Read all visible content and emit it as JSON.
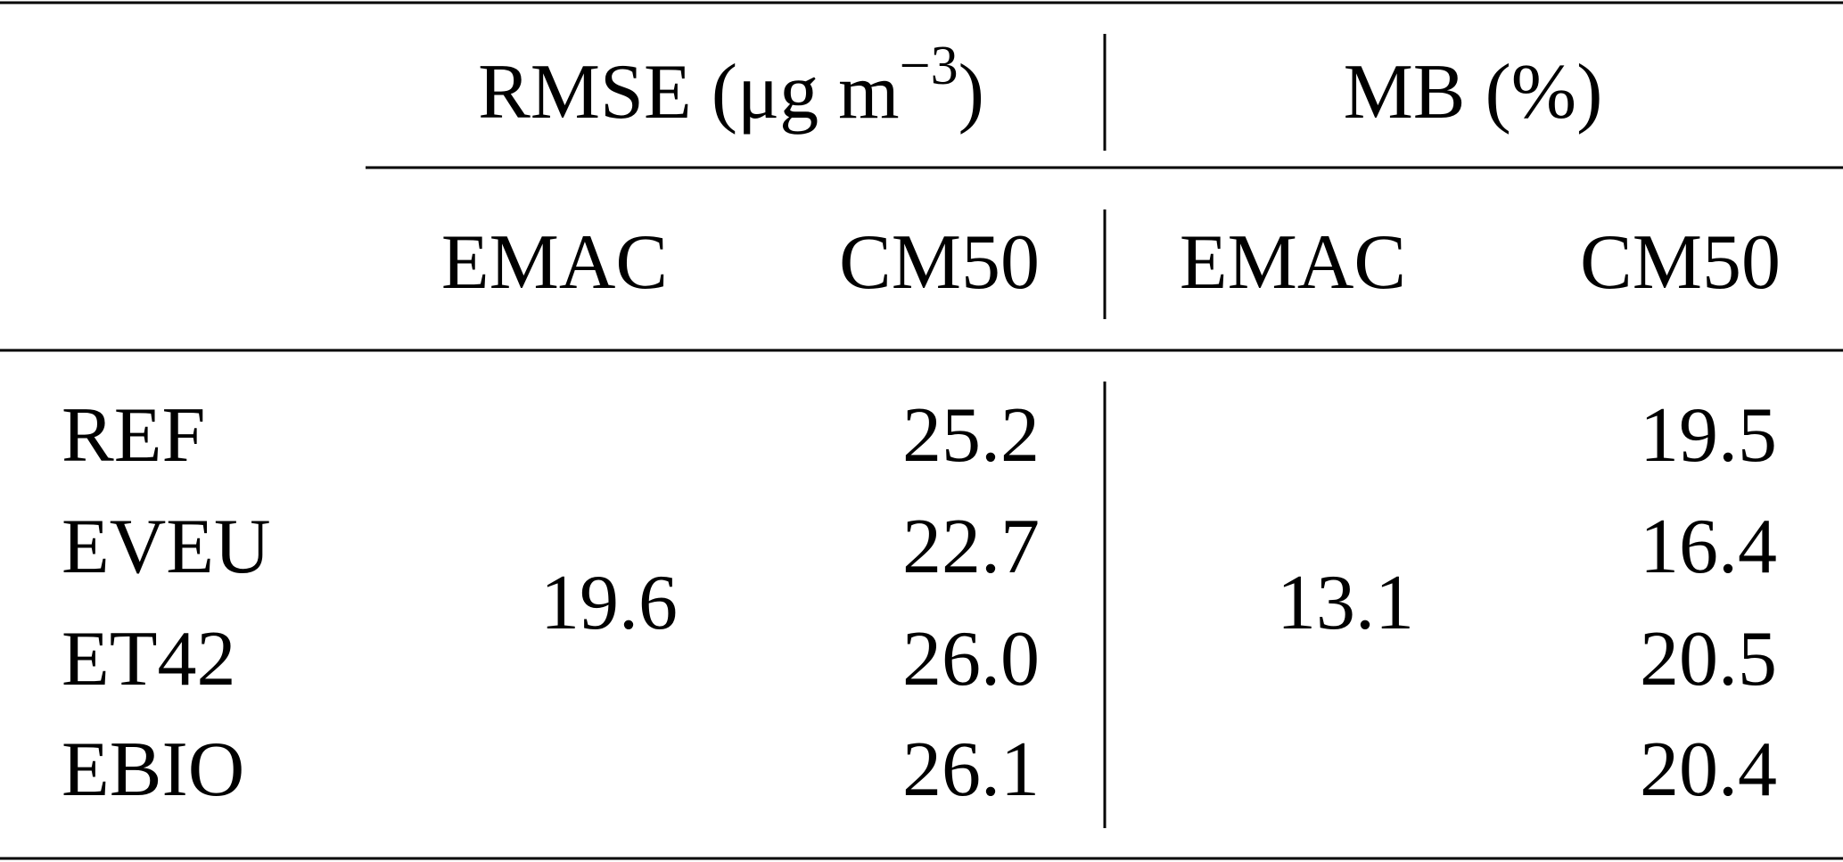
{
  "table": {
    "groups": [
      {
        "label": "RMSE (μg m",
        "superscript": "−3",
        "label_end": ")"
      },
      {
        "label": "MB (%)"
      }
    ],
    "subheaders": [
      "EMAC",
      "CM50",
      "EMAC",
      "CM50"
    ],
    "row_labels": [
      "REF",
      "EVEU",
      "ET42",
      "EBIO"
    ],
    "rmse_emac": "19.6",
    "rmse_cm50": [
      "25.2",
      "22.7",
      "26.0",
      "26.1"
    ],
    "mb_emac": "13.1",
    "mb_cm50": [
      "19.5",
      "16.4",
      "20.5",
      "20.4"
    ]
  }
}
